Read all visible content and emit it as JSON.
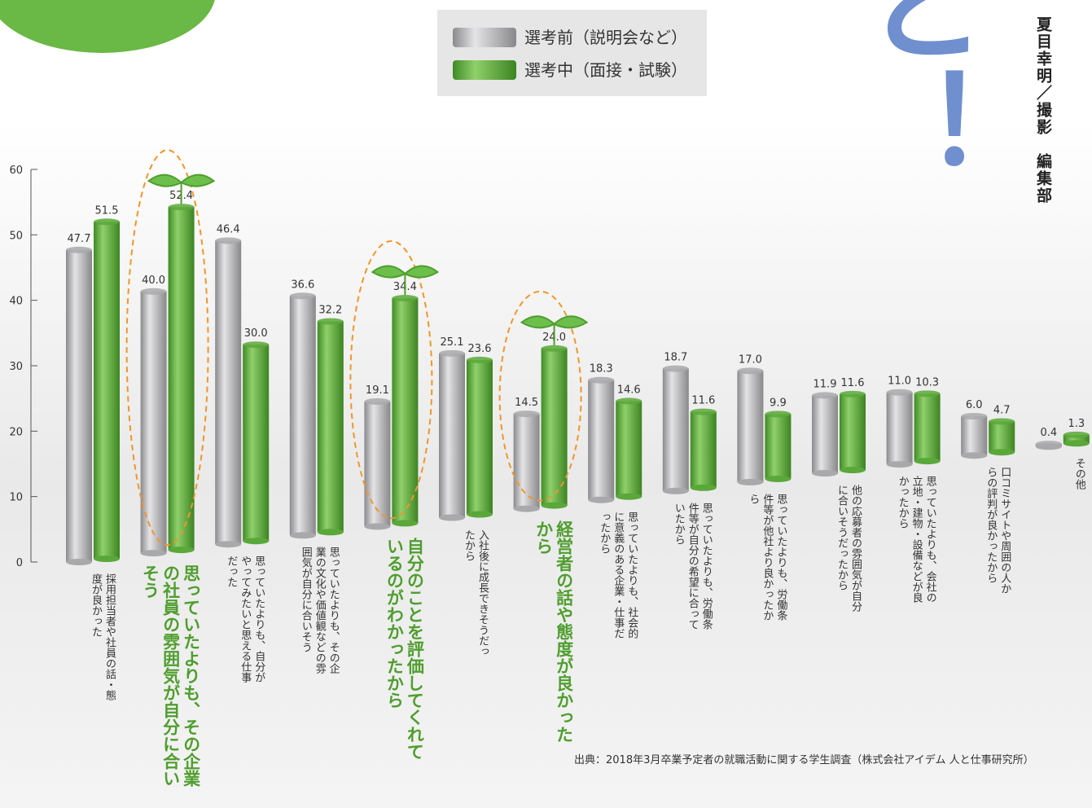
{
  "chart_data": {
    "type": "bar",
    "categories": [
      "採用担当者や社員の話・態度が良かった",
      "思っていたよりも、その企業の社員の雰囲気が自分に合いそう",
      "思っていたよりも、自分がやってみたいと思える仕事だった",
      "思っていたよりも、その企業の文化や価値観などの雰囲気が自分に合いそう",
      "自分のことを評価してくれているのがわかったから",
      "入社後に成長できそうだったから",
      "経営者の話や態度が良かったから",
      "思っていたよりも、社会的に意義のある企業・仕事だったから",
      "思っていたよりも、労働条件等が自分の希望に合っていたから",
      "思っていたよりも、労働条件等が他社より良かったから",
      "他の応募者の雰囲気が自分に合いそうだったから",
      "思っていたよりも、会社の立地・建物・設備などが良かったから",
      "口コミサイトや周囲の人からの評判が良かったから",
      "その他"
    ],
    "series": [
      {
        "name": "選考前（説明会など）",
        "color": "#a9a9ac",
        "values": [
          47.7,
          40.0,
          46.4,
          36.6,
          19.1,
          25.1,
          14.5,
          18.3,
          18.7,
          17.0,
          11.9,
          11.0,
          6.0,
          0.4
        ],
        "value_labels": [
          "47.7",
          "40.0",
          "46.4",
          "36.6",
          "19.1",
          "25.1",
          "14.5",
          "18.3",
          "18.7",
          "17.0",
          "11.9",
          "11.0",
          "6.0",
          "0.4"
        ]
      },
      {
        "name": "選考中（面接・試験）",
        "color": "#5aa83a",
        "values": [
          51.5,
          52.4,
          30.0,
          32.2,
          34.4,
          23.6,
          24.0,
          14.6,
          11.6,
          9.9,
          11.6,
          10.3,
          4.7,
          1.3
        ],
        "value_labels": [
          "51.5",
          "52.4",
          "30.0",
          "32.2",
          "34.4",
          "23.6",
          "24.0",
          "14.6",
          "11.6",
          "9.9",
          "11.6",
          "10.3",
          "4.7",
          "1.3"
        ]
      }
    ],
    "highlighted": [
      1,
      4,
      6
    ],
    "ylim": [
      0,
      60
    ],
    "yticks": [
      0,
      10,
      20,
      30,
      40,
      50,
      60
    ],
    "grid": false,
    "source": "出典：2018年3月卒業予定者の就職活動に関する学生調査（株式会社アイデム 人と仕事研究所）",
    "credit": "夏目幸明／撮影　編集部",
    "headline_fragment": "と！"
  }
}
